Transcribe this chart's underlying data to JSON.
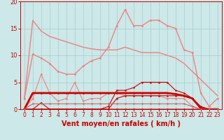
{
  "title": "",
  "xlabel": "Vent moyen/en rafales ( km/h )",
  "bg_color": "#cce8e8",
  "grid_color": "#aacccc",
  "xlim": [
    -0.5,
    23.5
  ],
  "ylim": [
    0,
    20
  ],
  "yticks": [
    0,
    5,
    10,
    15,
    20
  ],
  "xticks": [
    0,
    1,
    2,
    3,
    4,
    5,
    6,
    7,
    8,
    9,
    10,
    11,
    12,
    13,
    14,
    15,
    16,
    17,
    18,
    19,
    20,
    21,
    22,
    23
  ],
  "lines": [
    {
      "x": [
        0,
        1,
        2,
        3,
        4,
        5,
        6,
        7,
        8,
        9,
        10,
        11,
        12,
        13,
        14,
        15,
        16,
        17,
        18,
        19,
        20,
        21,
        22,
        23
      ],
      "y": [
        2.0,
        16.5,
        14.5,
        13.5,
        13.0,
        12.5,
        12.0,
        11.5,
        11.2,
        11.0,
        11.0,
        11.0,
        11.5,
        11.0,
        10.5,
        10.5,
        10.5,
        10.0,
        9.5,
        8.5,
        7.0,
        5.5,
        4.0,
        2.5
      ],
      "color": "#f08080",
      "lw": 1.0,
      "marker": null,
      "ms": 0
    },
    {
      "x": [
        0,
        1,
        2,
        3,
        4,
        5,
        6,
        7,
        8,
        9,
        10,
        11,
        12,
        13,
        14,
        15,
        16,
        17,
        18,
        19,
        20,
        21,
        22,
        23
      ],
      "y": [
        2.0,
        10.2,
        9.5,
        8.5,
        7.0,
        6.5,
        6.5,
        8.0,
        9.0,
        9.5,
        11.5,
        15.5,
        18.5,
        15.5,
        15.5,
        16.5,
        16.5,
        15.5,
        15.0,
        11.0,
        10.5,
        3.0,
        0.5,
        2.0
      ],
      "color": "#f08080",
      "lw": 1.0,
      "marker": "o",
      "ms": 2.0
    },
    {
      "x": [
        0,
        1,
        2,
        3,
        4,
        5,
        6,
        7,
        8,
        9,
        10,
        11,
        12,
        13,
        14,
        15,
        16,
        17,
        18,
        19,
        20,
        21,
        22,
        23
      ],
      "y": [
        0,
        2.0,
        6.5,
        3.0,
        1.5,
        2.0,
        5.0,
        1.5,
        2.0,
        2.0,
        3.0,
        3.0,
        2.5,
        2.5,
        2.5,
        2.5,
        2.5,
        2.0,
        2.0,
        2.0,
        0.5,
        0,
        0,
        0
      ],
      "color": "#f08080",
      "lw": 0.8,
      "marker": "o",
      "ms": 2.0
    },
    {
      "x": [
        0,
        1,
        2,
        3,
        4,
        5,
        6,
        7,
        8,
        9,
        10,
        11,
        12,
        13,
        14,
        15,
        16,
        17,
        18,
        19,
        20,
        21,
        22,
        23
      ],
      "y": [
        0,
        3.0,
        3.0,
        3.0,
        3.0,
        3.0,
        3.0,
        3.0,
        3.0,
        3.0,
        3.0,
        3.0,
        3.0,
        3.0,
        3.0,
        3.0,
        3.0,
        3.0,
        2.8,
        2.5,
        2.0,
        0.2,
        0.0,
        0.0
      ],
      "color": "#cc0000",
      "lw": 2.0,
      "marker": "o",
      "ms": 2.0
    },
    {
      "x": [
        0,
        1,
        2,
        3,
        4,
        5,
        6,
        7,
        8,
        9,
        10,
        11,
        12,
        13,
        14,
        15,
        16,
        17,
        18,
        19,
        20,
        21,
        22,
        23
      ],
      "y": [
        0,
        0,
        1.2,
        0,
        0,
        0,
        0,
        0,
        0,
        0,
        0,
        0,
        0,
        0,
        0,
        0,
        0,
        0,
        0,
        0,
        0,
        0,
        0,
        0
      ],
      "color": "#cc0000",
      "lw": 0.8,
      "marker": "o",
      "ms": 1.8
    },
    {
      "x": [
        0,
        1,
        2,
        3,
        4,
        5,
        6,
        7,
        8,
        9,
        10,
        11,
        12,
        13,
        14,
        15,
        16,
        17,
        18,
        19,
        20,
        21,
        22,
        23
      ],
      "y": [
        0,
        0,
        0,
        0,
        0,
        0,
        0,
        0,
        0,
        0,
        0.5,
        3.5,
        3.5,
        4.0,
        5.0,
        5.0,
        5.0,
        5.0,
        3.5,
        3.0,
        2.0,
        0.5,
        0.0,
        0.0
      ],
      "color": "#cc0000",
      "lw": 0.8,
      "marker": "o",
      "ms": 1.8
    },
    {
      "x": [
        0,
        1,
        2,
        3,
        4,
        5,
        6,
        7,
        8,
        9,
        10,
        11,
        12,
        13,
        14,
        15,
        16,
        17,
        18,
        19,
        20,
        21,
        22,
        23
      ],
      "y": [
        0,
        0,
        0,
        0,
        0,
        0,
        0,
        0,
        0,
        0,
        0,
        2.0,
        2.5,
        2.5,
        2.5,
        2.5,
        2.5,
        2.5,
        2.5,
        2.5,
        2.0,
        0,
        0,
        0
      ],
      "color": "#cc0000",
      "lw": 0.8,
      "marker": "o",
      "ms": 1.8
    },
    {
      "x": [
        0,
        1,
        2,
        3,
        4,
        5,
        6,
        7,
        8,
        9,
        10,
        11,
        12,
        13,
        14,
        15,
        16,
        17,
        18,
        19,
        20,
        21,
        22,
        23
      ],
      "y": [
        0,
        1.0,
        1.0,
        1.0,
        1.0,
        1.0,
        1.0,
        1.0,
        1.0,
        1.0,
        1.0,
        1.0,
        1.0,
        1.0,
        1.0,
        1.0,
        1.0,
        1.0,
        1.0,
        1.0,
        0.5,
        0,
        0,
        0
      ],
      "color": "#cc6666",
      "lw": 0.8,
      "marker": "o",
      "ms": 1.8
    }
  ],
  "xlabel_color": "#cc0000",
  "tick_color": "#cc0000",
  "xlabel_fontsize": 7,
  "tick_fontsize": 5.5
}
